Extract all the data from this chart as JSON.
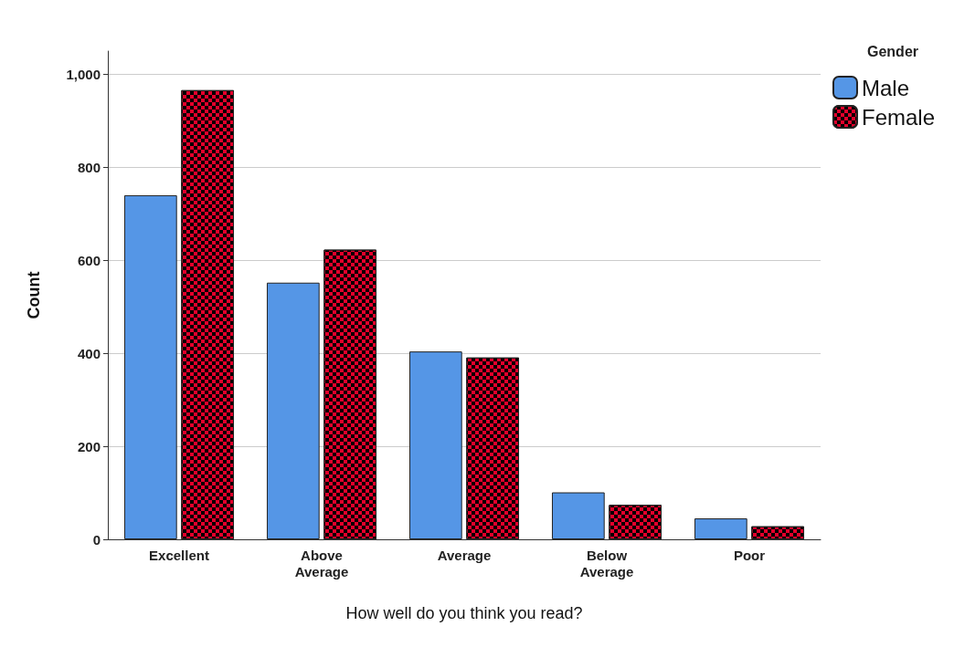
{
  "chart_data": {
    "type": "bar",
    "xlabel": "How well do you think you read?",
    "ylabel": "Count",
    "legend_title": "Gender",
    "categories": [
      "Excellent",
      "Above\nAverage",
      "Average",
      "Below\nAverage",
      "Poor"
    ],
    "series": [
      {
        "name": "Male",
        "color": "#5596e6",
        "values": [
          740,
          552,
          404,
          101,
          45
        ]
      },
      {
        "name": "Female",
        "color": "#e4002b",
        "values": [
          966,
          623,
          391,
          74,
          28
        ]
      }
    ],
    "ylim": [
      0,
      1050
    ],
    "yticks": [
      0,
      200,
      400,
      600,
      800,
      {
        "value": 1000,
        "label": "1,000"
      }
    ],
    "grid": "y",
    "legend": "top right"
  }
}
